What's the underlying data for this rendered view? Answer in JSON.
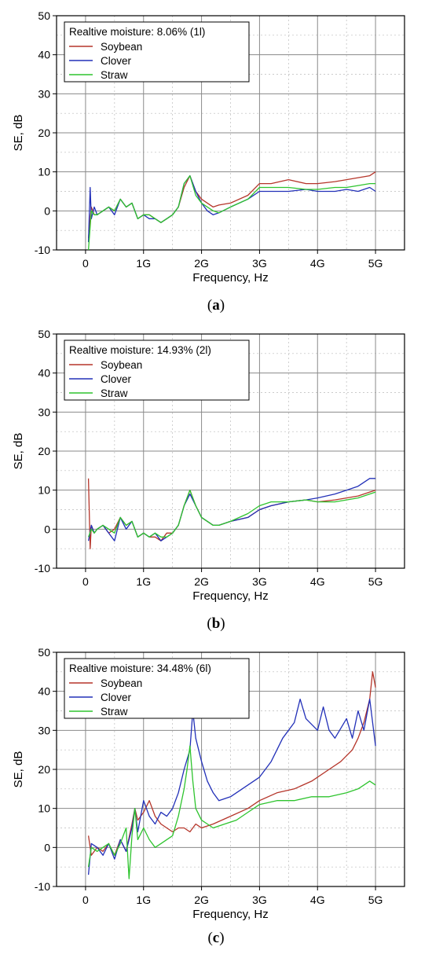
{
  "chart_data": [
    {
      "type": "line",
      "panel_label": "a",
      "legend_title": "Realtive moisture: 8.06% (1l)",
      "xlabel": "Frequency, Hz",
      "ylabel": "SE, dB",
      "x_tick_labels": [
        "0",
        "1G",
        "2G",
        "3G",
        "4G",
        "5G"
      ],
      "x_tick_values": [
        0,
        1,
        2,
        3,
        4,
        5
      ],
      "y_tick_values": [
        -10,
        0,
        10,
        20,
        30,
        40,
        50
      ],
      "xlim": [
        -0.5,
        5.5
      ],
      "ylim": [
        -10,
        50
      ],
      "grid": true,
      "legend_position": "top-left",
      "series": [
        {
          "name": "Soybean",
          "color": "#b5352a",
          "x": [
            0.05,
            0.1,
            0.15,
            0.2,
            0.3,
            0.4,
            0.5,
            0.6,
            0.7,
            0.8,
            0.9,
            1.0,
            1.1,
            1.2,
            1.3,
            1.4,
            1.5,
            1.6,
            1.7,
            1.8,
            1.9,
            2.0,
            2.1,
            2.2,
            2.3,
            2.5,
            2.8,
            3.0,
            3.2,
            3.5,
            3.8,
            4.0,
            4.3,
            4.5,
            4.7,
            4.9,
            5.0
          ],
          "y": [
            -7,
            1,
            -1,
            -1,
            0,
            1,
            0,
            3,
            1,
            2,
            -2,
            -1,
            -1,
            -2,
            -3,
            -2,
            -1,
            1,
            6,
            9,
            5,
            3,
            2,
            1,
            1.5,
            2,
            4,
            7,
            7,
            8,
            7,
            7,
            7.5,
            8,
            8.5,
            9,
            10
          ]
        },
        {
          "name": "Clover",
          "color": "#2230b8",
          "x": [
            0.05,
            0.08,
            0.1,
            0.15,
            0.2,
            0.3,
            0.4,
            0.5,
            0.6,
            0.7,
            0.8,
            0.9,
            1.0,
            1.1,
            1.2,
            1.3,
            1.4,
            1.5,
            1.6,
            1.7,
            1.8,
            1.9,
            2.0,
            2.1,
            2.2,
            2.3,
            2.5,
            2.8,
            3.0,
            3.2,
            3.5,
            3.8,
            4.0,
            4.3,
            4.5,
            4.7,
            4.9,
            5.0
          ],
          "y": [
            -8,
            6,
            -2,
            1,
            -1,
            0,
            1,
            -1,
            3,
            1,
            2,
            -2,
            -1,
            -2,
            -2,
            -3,
            -2,
            -1,
            1,
            7,
            9,
            5,
            2,
            0,
            -1,
            -0.5,
            1,
            3,
            5,
            5,
            5,
            5.5,
            5,
            5,
            5.5,
            5,
            6,
            5
          ]
        },
        {
          "name": "Straw",
          "color": "#2ec42e",
          "x": [
            0.05,
            0.1,
            0.15,
            0.2,
            0.3,
            0.4,
            0.5,
            0.6,
            0.7,
            0.8,
            0.9,
            1.0,
            1.1,
            1.2,
            1.3,
            1.4,
            1.5,
            1.6,
            1.7,
            1.8,
            1.9,
            2.0,
            2.1,
            2.2,
            2.3,
            2.5,
            2.8,
            3.0,
            3.2,
            3.5,
            3.8,
            4.0,
            4.3,
            4.5,
            4.7,
            4.9,
            5.0
          ],
          "y": [
            -10,
            0,
            -1,
            -1,
            0,
            1,
            0,
            3,
            1,
            2,
            -2,
            -1,
            -1,
            -2,
            -3,
            -2,
            -1,
            1,
            7,
            9,
            4,
            2,
            1,
            0,
            -0.5,
            1,
            3,
            6,
            6,
            6,
            5.5,
            5.5,
            6,
            6,
            6.5,
            7,
            7
          ]
        }
      ]
    },
    {
      "type": "line",
      "panel_label": "b",
      "legend_title": "Realtive moisture: 14.93% (2l)",
      "xlabel": "Frequency, Hz",
      "ylabel": "SE, dB",
      "x_tick_labels": [
        "0",
        "1G",
        "2G",
        "3G",
        "4G",
        "5G"
      ],
      "x_tick_values": [
        0,
        1,
        2,
        3,
        4,
        5
      ],
      "y_tick_values": [
        -10,
        0,
        10,
        20,
        30,
        40,
        50
      ],
      "xlim": [
        -0.5,
        5.5
      ],
      "ylim": [
        -10,
        50
      ],
      "grid": true,
      "legend_position": "top-left",
      "series": [
        {
          "name": "Soybean",
          "color": "#b5352a",
          "x": [
            0.05,
            0.08,
            0.1,
            0.15,
            0.2,
            0.3,
            0.4,
            0.5,
            0.6,
            0.7,
            0.8,
            0.9,
            1.0,
            1.1,
            1.2,
            1.3,
            1.4,
            1.5,
            1.6,
            1.7,
            1.8,
            1.9,
            2.0,
            2.1,
            2.2,
            2.3,
            2.5,
            2.8,
            3.0,
            3.2,
            3.5,
            3.8,
            4.0,
            4.3,
            4.5,
            4.7,
            4.9,
            5.0
          ],
          "y": [
            13,
            -5,
            1,
            -1,
            0,
            1,
            -1,
            0,
            3,
            1,
            2,
            -2,
            -1,
            -2,
            -2,
            -3,
            -1,
            -1,
            1,
            6,
            10,
            6,
            3,
            2,
            1,
            1,
            2,
            3,
            5,
            6,
            7,
            7.5,
            7,
            7.5,
            8,
            8.5,
            9.5,
            10
          ]
        },
        {
          "name": "Clover",
          "color": "#2230b8",
          "x": [
            0.05,
            0.1,
            0.15,
            0.2,
            0.3,
            0.4,
            0.5,
            0.6,
            0.7,
            0.8,
            0.9,
            1.0,
            1.1,
            1.2,
            1.3,
            1.4,
            1.5,
            1.6,
            1.7,
            1.8,
            1.9,
            2.0,
            2.1,
            2.2,
            2.3,
            2.5,
            2.8,
            3.0,
            3.2,
            3.5,
            3.8,
            4.0,
            4.3,
            4.5,
            4.7,
            4.9,
            5.0
          ],
          "y": [
            -3,
            1,
            -1,
            0,
            1,
            -1,
            -3,
            3,
            0,
            2,
            -2,
            -1,
            -2,
            -1,
            -3,
            -2,
            -1,
            1,
            6,
            9,
            6,
            3,
            2,
            1,
            1,
            2,
            3,
            5,
            6,
            7,
            7.5,
            8,
            9,
            10,
            11,
            13,
            13
          ]
        },
        {
          "name": "Straw",
          "color": "#2ec42e",
          "x": [
            0.05,
            0.1,
            0.15,
            0.2,
            0.3,
            0.4,
            0.5,
            0.6,
            0.7,
            0.8,
            0.9,
            1.0,
            1.1,
            1.2,
            1.3,
            1.4,
            1.5,
            1.6,
            1.7,
            1.8,
            1.9,
            2.0,
            2.1,
            2.2,
            2.3,
            2.5,
            2.8,
            3.0,
            3.2,
            3.5,
            3.8,
            4.0,
            4.3,
            4.5,
            4.7,
            4.9,
            5.0
          ],
          "y": [
            -2,
            0,
            -1,
            0,
            1,
            0,
            -1,
            3,
            1,
            2,
            -2,
            -1,
            -2,
            -1,
            -2,
            -2,
            -1,
            1,
            6,
            10,
            6,
            3,
            2,
            1,
            1,
            2,
            4,
            6,
            7,
            7,
            7.5,
            7,
            7,
            7.5,
            8,
            9,
            9.5
          ]
        }
      ]
    },
    {
      "type": "line",
      "panel_label": "c",
      "legend_title": "Realtive moisture: 34.48% (6l)",
      "xlabel": "Frequency, Hz",
      "ylabel": "SE, dB",
      "x_tick_labels": [
        "0",
        "1G",
        "2G",
        "3G",
        "4G",
        "5G"
      ],
      "x_tick_values": [
        0,
        1,
        2,
        3,
        4,
        5
      ],
      "y_tick_values": [
        -10,
        0,
        10,
        20,
        30,
        40,
        50
      ],
      "xlim": [
        -0.5,
        5.5
      ],
      "ylim": [
        -10,
        50
      ],
      "grid": true,
      "legend_position": "top-left",
      "series": [
        {
          "name": "Soybean",
          "color": "#b5352a",
          "x": [
            0.05,
            0.1,
            0.2,
            0.3,
            0.4,
            0.5,
            0.6,
            0.7,
            0.8,
            0.85,
            0.9,
            1.0,
            1.1,
            1.2,
            1.3,
            1.4,
            1.5,
            1.6,
            1.7,
            1.8,
            1.9,
            2.0,
            2.2,
            2.5,
            2.8,
            3.0,
            3.3,
            3.6,
            3.9,
            4.2,
            4.4,
            4.6,
            4.7,
            4.8,
            4.9,
            4.95,
            5.0
          ],
          "y": [
            3,
            -2,
            0,
            -1,
            1,
            -2,
            2,
            -1,
            6,
            10,
            7,
            9,
            12,
            8,
            6,
            5,
            4,
            5,
            5,
            4,
            6,
            5,
            6,
            8,
            10,
            12,
            14,
            15,
            17,
            20,
            22,
            25,
            28,
            32,
            38,
            45,
            41
          ]
        },
        {
          "name": "Clover",
          "color": "#2230b8",
          "x": [
            0.05,
            0.1,
            0.2,
            0.3,
            0.4,
            0.5,
            0.6,
            0.7,
            0.8,
            0.85,
            0.9,
            1.0,
            1.1,
            1.2,
            1.3,
            1.4,
            1.5,
            1.6,
            1.7,
            1.8,
            1.85,
            1.9,
            2.0,
            2.1,
            2.2,
            2.3,
            2.5,
            2.8,
            3.0,
            3.2,
            3.4,
            3.6,
            3.7,
            3.8,
            4.0,
            4.1,
            4.2,
            4.3,
            4.5,
            4.6,
            4.7,
            4.8,
            4.9,
            5.0
          ],
          "y": [
            -7,
            1,
            0,
            -2,
            1,
            -3,
            2,
            -1,
            5,
            10,
            4,
            12,
            8,
            6,
            9,
            8,
            10,
            14,
            20,
            25,
            35,
            28,
            22,
            17,
            14,
            12,
            13,
            16,
            18,
            22,
            28,
            32,
            38,
            33,
            30,
            36,
            30,
            28,
            33,
            28,
            35,
            30,
            38,
            26
          ]
        },
        {
          "name": "Straw",
          "color": "#2ec42e",
          "x": [
            0.05,
            0.1,
            0.2,
            0.3,
            0.4,
            0.5,
            0.6,
            0.7,
            0.75,
            0.8,
            0.85,
            0.9,
            1.0,
            1.1,
            1.2,
            1.3,
            1.4,
            1.5,
            1.6,
            1.7,
            1.75,
            1.8,
            1.85,
            1.9,
            2.0,
            2.1,
            2.2,
            2.4,
            2.6,
            2.8,
            3.0,
            3.3,
            3.6,
            3.9,
            4.2,
            4.5,
            4.7,
            4.8,
            4.9,
            5.0
          ],
          "y": [
            -5,
            0,
            -1,
            0,
            1,
            -2,
            1,
            5,
            -8,
            3,
            10,
            2,
            5,
            2,
            0,
            1,
            2,
            3,
            8,
            15,
            20,
            26,
            17,
            10,
            7,
            6,
            5,
            6,
            7,
            9,
            11,
            12,
            12,
            13,
            13,
            14,
            15,
            16,
            17,
            16
          ]
        }
      ]
    }
  ]
}
